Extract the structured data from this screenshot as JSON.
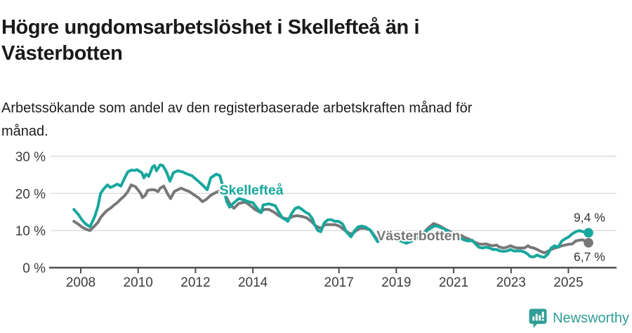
{
  "header": {
    "title_lines": [
      "Högre ungdomsarbetslöshet i Skellefteå än i",
      "Västerbotten"
    ],
    "subtitle_lines": [
      "Arbetssökande som andel av den registerbaserade arbetskraften månad för",
      "månad."
    ]
  },
  "footer": {
    "brand": "Newsworthy"
  },
  "colors": {
    "skelleftea": "#17a79d",
    "vasterbotten": "#777777",
    "axis": "#4d4d4d",
    "grid": "#dbdbdb",
    "tick_text": "#3c3c3c",
    "end_label_text": "#333333",
    "brand_teal": "#2f9e96"
  },
  "chart_data": {
    "type": "line",
    "title": "Högre ungdomsarbetslöshet i Skellefteå än i Västerbotten",
    "subtitle": "Arbetssökande som andel av den registerbaserade arbetskraften månad för månad.",
    "unit": "%",
    "grid": "horizontal",
    "xlim": [
      2007.7,
      2025.95
    ],
    "ylim": [
      0,
      32
    ],
    "x_ticks": [
      {
        "v": 2008,
        "label": "2008"
      },
      {
        "v": 2010,
        "label": "2010"
      },
      {
        "v": 2012,
        "label": "2012"
      },
      {
        "v": 2014,
        "label": "2014"
      },
      {
        "v": 2017,
        "label": "2017"
      },
      {
        "v": 2019,
        "label": "2019"
      },
      {
        "v": 2021,
        "label": "2021"
      },
      {
        "v": 2023,
        "label": "2023"
      },
      {
        "v": 2025,
        "label": "2025"
      }
    ],
    "y_ticks": [
      {
        "v": 0,
        "label": "0 %"
      },
      {
        "v": 10,
        "label": "10 %"
      },
      {
        "v": 20,
        "label": "20 %"
      },
      {
        "v": 30,
        "label": "30 %"
      }
    ],
    "series": [
      {
        "name": "Västerbotten",
        "color": "#777777",
        "label_pos": {
          "x": 2019.77,
          "y": 8.7
        },
        "end_label": {
          "text": "6,7 %",
          "placement": "below"
        },
        "points": [
          [
            2007.76,
            12.5
          ],
          [
            2007.92,
            11.7
          ],
          [
            2008.05,
            10.9
          ],
          [
            2008.17,
            10.4
          ],
          [
            2008.32,
            10.0
          ],
          [
            2008.49,
            11.3
          ],
          [
            2008.6,
            12.2
          ],
          [
            2008.69,
            13.5
          ],
          [
            2008.8,
            14.5
          ],
          [
            2008.93,
            15.5
          ],
          [
            2009.03,
            16.0
          ],
          [
            2009.15,
            16.8
          ],
          [
            2009.27,
            17.5
          ],
          [
            2009.4,
            18.5
          ],
          [
            2009.52,
            19.3
          ],
          [
            2009.64,
            20.5
          ],
          [
            2009.76,
            22.3
          ],
          [
            2009.91,
            21.8
          ],
          [
            2010.08,
            20.1
          ],
          [
            2010.15,
            18.9
          ],
          [
            2010.25,
            19.5
          ],
          [
            2010.33,
            20.8
          ],
          [
            2010.45,
            21.0
          ],
          [
            2010.57,
            21.0
          ],
          [
            2010.69,
            20.5
          ],
          [
            2010.77,
            21.4
          ],
          [
            2010.89,
            22.0
          ],
          [
            2011.01,
            20.1
          ],
          [
            2011.13,
            18.6
          ],
          [
            2011.26,
            20.5
          ],
          [
            2011.38,
            21.0
          ],
          [
            2011.5,
            21.4
          ],
          [
            2011.62,
            21.0
          ],
          [
            2011.79,
            20.5
          ],
          [
            2011.97,
            19.5
          ],
          [
            2012.11,
            18.8
          ],
          [
            2012.24,
            17.8
          ],
          [
            2012.36,
            18.3
          ],
          [
            2012.53,
            19.5
          ],
          [
            2012.72,
            20.3
          ],
          [
            2012.9,
            20.8
          ],
          [
            2013.07,
            19.0
          ],
          [
            2013.21,
            17.0
          ],
          [
            2013.34,
            16.0
          ],
          [
            2013.51,
            17.3
          ],
          [
            2013.68,
            17.6
          ],
          [
            2013.75,
            17.6
          ],
          [
            2013.92,
            16.7
          ],
          [
            2014.07,
            15.7
          ],
          [
            2014.24,
            15.0
          ],
          [
            2014.41,
            15.7
          ],
          [
            2014.56,
            15.7
          ],
          [
            2014.73,
            15.0
          ],
          [
            2014.9,
            14.0
          ],
          [
            2015.05,
            13.4
          ],
          [
            2015.22,
            13.1
          ],
          [
            2015.39,
            13.8
          ],
          [
            2015.54,
            14.0
          ],
          [
            2015.71,
            13.8
          ],
          [
            2015.88,
            13.4
          ],
          [
            2016.03,
            12.5
          ],
          [
            2016.2,
            11.2
          ],
          [
            2016.37,
            10.6
          ],
          [
            2016.52,
            11.6
          ],
          [
            2016.69,
            11.6
          ],
          [
            2016.86,
            11.6
          ],
          [
            2017.01,
            11.2
          ],
          [
            2017.18,
            10.2
          ],
          [
            2017.35,
            9.3
          ],
          [
            2017.47,
            9.1
          ],
          [
            2017.6,
            10.0
          ],
          [
            2017.74,
            10.6
          ],
          [
            2017.91,
            10.6
          ],
          [
            2018.08,
            10.2
          ],
          [
            2018.2,
            9.0
          ],
          [
            2018.35,
            7.4
          ],
          [
            2018.5,
            8.0
          ],
          [
            2018.65,
            8.6
          ],
          [
            2018.85,
            8.3
          ],
          [
            2019.0,
            7.9
          ],
          [
            2019.15,
            7.3
          ],
          [
            2019.35,
            6.6
          ],
          [
            2019.5,
            7.1
          ],
          [
            2019.7,
            7.9
          ],
          [
            2019.9,
            8.8
          ],
          [
            2020.1,
            10.6
          ],
          [
            2020.3,
            11.9
          ],
          [
            2020.5,
            11.3
          ],
          [
            2020.7,
            10.4
          ],
          [
            2020.95,
            9.4
          ],
          [
            2021.15,
            8.8
          ],
          [
            2021.27,
            8.7
          ],
          [
            2021.39,
            8.1
          ],
          [
            2021.51,
            7.8
          ],
          [
            2021.64,
            7.2
          ],
          [
            2021.76,
            6.8
          ],
          [
            2021.88,
            6.4
          ],
          [
            2022.0,
            6.3
          ],
          [
            2022.13,
            6.4
          ],
          [
            2022.25,
            6.1
          ],
          [
            2022.37,
            5.9
          ],
          [
            2022.49,
            6.1
          ],
          [
            2022.61,
            5.5
          ],
          [
            2022.74,
            5.3
          ],
          [
            2022.86,
            5.5
          ],
          [
            2022.98,
            5.9
          ],
          [
            2023.1,
            5.5
          ],
          [
            2023.23,
            5.3
          ],
          [
            2023.35,
            5.3
          ],
          [
            2023.47,
            5.3
          ],
          [
            2023.59,
            5.9
          ],
          [
            2023.67,
            5.5
          ],
          [
            2023.79,
            5.3
          ],
          [
            2023.91,
            4.9
          ],
          [
            2024.03,
            4.4
          ],
          [
            2024.16,
            4.0
          ],
          [
            2024.28,
            4.4
          ],
          [
            2024.4,
            4.9
          ],
          [
            2024.52,
            5.3
          ],
          [
            2024.64,
            5.5
          ],
          [
            2024.77,
            5.9
          ],
          [
            2024.89,
            6.1
          ],
          [
            2025.01,
            6.3
          ],
          [
            2025.13,
            6.4
          ],
          [
            2025.26,
            7.2
          ],
          [
            2025.38,
            7.4
          ],
          [
            2025.5,
            7.5
          ],
          [
            2025.7,
            6.7
          ]
        ]
      },
      {
        "name": "Skellefteå",
        "color": "#17a79d",
        "label_pos": {
          "x": 2013.95,
          "y": 21.0
        },
        "end_label": {
          "text": "9,4 %",
          "placement": "above"
        },
        "points": [
          [
            2007.76,
            15.7
          ],
          [
            2007.92,
            14.3
          ],
          [
            2008.05,
            12.8
          ],
          [
            2008.17,
            11.8
          ],
          [
            2008.32,
            11.0
          ],
          [
            2008.49,
            13.8
          ],
          [
            2008.6,
            16.5
          ],
          [
            2008.69,
            20.0
          ],
          [
            2008.8,
            21.2
          ],
          [
            2008.93,
            22.3
          ],
          [
            2009.03,
            21.6
          ],
          [
            2009.15,
            22.0
          ],
          [
            2009.27,
            22.5
          ],
          [
            2009.4,
            22.0
          ],
          [
            2009.52,
            24.0
          ],
          [
            2009.64,
            25.8
          ],
          [
            2009.76,
            26.3
          ],
          [
            2009.88,
            26.2
          ],
          [
            2009.96,
            26.4
          ],
          [
            2010.13,
            25.6
          ],
          [
            2010.2,
            24.2
          ],
          [
            2010.28,
            25.2
          ],
          [
            2010.37,
            24.6
          ],
          [
            2010.5,
            27.1
          ],
          [
            2010.57,
            27.5
          ],
          [
            2010.64,
            26.1
          ],
          [
            2010.77,
            27.7
          ],
          [
            2010.86,
            27.5
          ],
          [
            2010.99,
            25.8
          ],
          [
            2011.11,
            23.3
          ],
          [
            2011.23,
            25.6
          ],
          [
            2011.38,
            26.1
          ],
          [
            2011.55,
            25.8
          ],
          [
            2011.72,
            25.2
          ],
          [
            2011.87,
            24.8
          ],
          [
            2012.04,
            23.7
          ],
          [
            2012.21,
            22.5
          ],
          [
            2012.41,
            21.0
          ],
          [
            2012.53,
            24.2
          ],
          [
            2012.72,
            25.2
          ],
          [
            2012.85,
            24.8
          ],
          [
            2012.97,
            21.5
          ],
          [
            2013.09,
            17.8
          ],
          [
            2013.19,
            16.3
          ],
          [
            2013.34,
            17.5
          ],
          [
            2013.51,
            18.6
          ],
          [
            2013.68,
            18.3
          ],
          [
            2013.83,
            17.8
          ],
          [
            2014.0,
            17.5
          ],
          [
            2014.12,
            16.3
          ],
          [
            2014.29,
            14.8
          ],
          [
            2014.36,
            16.9
          ],
          [
            2014.56,
            17.2
          ],
          [
            2014.78,
            16.7
          ],
          [
            2014.9,
            15.0
          ],
          [
            2015.03,
            13.4
          ],
          [
            2015.15,
            12.9
          ],
          [
            2015.22,
            12.5
          ],
          [
            2015.34,
            14.4
          ],
          [
            2015.47,
            15.9
          ],
          [
            2015.59,
            16.3
          ],
          [
            2015.71,
            15.7
          ],
          [
            2015.83,
            15.0
          ],
          [
            2015.96,
            14.4
          ],
          [
            2016.08,
            13.1
          ],
          [
            2016.15,
            11.6
          ],
          [
            2016.27,
            10.0
          ],
          [
            2016.37,
            9.7
          ],
          [
            2016.49,
            12.1
          ],
          [
            2016.62,
            12.9
          ],
          [
            2016.74,
            12.9
          ],
          [
            2016.86,
            12.5
          ],
          [
            2016.98,
            12.5
          ],
          [
            2017.11,
            11.9
          ],
          [
            2017.18,
            11.0
          ],
          [
            2017.25,
            9.7
          ],
          [
            2017.37,
            8.7
          ],
          [
            2017.42,
            8.3
          ],
          [
            2017.55,
            10.0
          ],
          [
            2017.67,
            11.0
          ],
          [
            2017.79,
            11.2
          ],
          [
            2017.91,
            11.0
          ],
          [
            2018.08,
            10.2
          ],
          [
            2018.2,
            8.8
          ],
          [
            2018.35,
            7.0
          ],
          [
            2018.5,
            7.8
          ],
          [
            2018.65,
            8.5
          ],
          [
            2018.85,
            8.2
          ],
          [
            2019.0,
            7.8
          ],
          [
            2019.15,
            7.2
          ],
          [
            2019.35,
            6.6
          ],
          [
            2019.5,
            7.0
          ],
          [
            2019.7,
            7.8
          ],
          [
            2019.9,
            8.6
          ],
          [
            2020.1,
            10.2
          ],
          [
            2020.35,
            11.3
          ],
          [
            2020.5,
            11.0
          ],
          [
            2020.7,
            10.2
          ],
          [
            2020.9,
            9.3
          ],
          [
            2021.1,
            8.3
          ],
          [
            2021.27,
            7.8
          ],
          [
            2021.39,
            7.4
          ],
          [
            2021.51,
            7.2
          ],
          [
            2021.64,
            7.4
          ],
          [
            2021.76,
            6.4
          ],
          [
            2021.88,
            5.5
          ],
          [
            2022.0,
            5.3
          ],
          [
            2022.13,
            5.5
          ],
          [
            2022.25,
            5.3
          ],
          [
            2022.37,
            4.9
          ],
          [
            2022.49,
            4.9
          ],
          [
            2022.61,
            4.5
          ],
          [
            2022.74,
            4.4
          ],
          [
            2022.86,
            4.5
          ],
          [
            2022.98,
            4.9
          ],
          [
            2023.1,
            4.5
          ],
          [
            2023.23,
            4.5
          ],
          [
            2023.35,
            4.5
          ],
          [
            2023.47,
            4.2
          ],
          [
            2023.59,
            3.6
          ],
          [
            2023.67,
            3.0
          ],
          [
            2023.79,
            2.9
          ],
          [
            2023.91,
            3.4
          ],
          [
            2024.03,
            3.0
          ],
          [
            2024.16,
            2.8
          ],
          [
            2024.28,
            3.6
          ],
          [
            2024.4,
            5.3
          ],
          [
            2024.52,
            5.9
          ],
          [
            2024.64,
            5.5
          ],
          [
            2024.77,
            7.2
          ],
          [
            2024.89,
            7.8
          ],
          [
            2025.01,
            8.3
          ],
          [
            2025.13,
            9.1
          ],
          [
            2025.26,
            9.7
          ],
          [
            2025.38,
            10.0
          ],
          [
            2025.5,
            9.7
          ],
          [
            2025.7,
            9.4
          ]
        ]
      }
    ]
  }
}
